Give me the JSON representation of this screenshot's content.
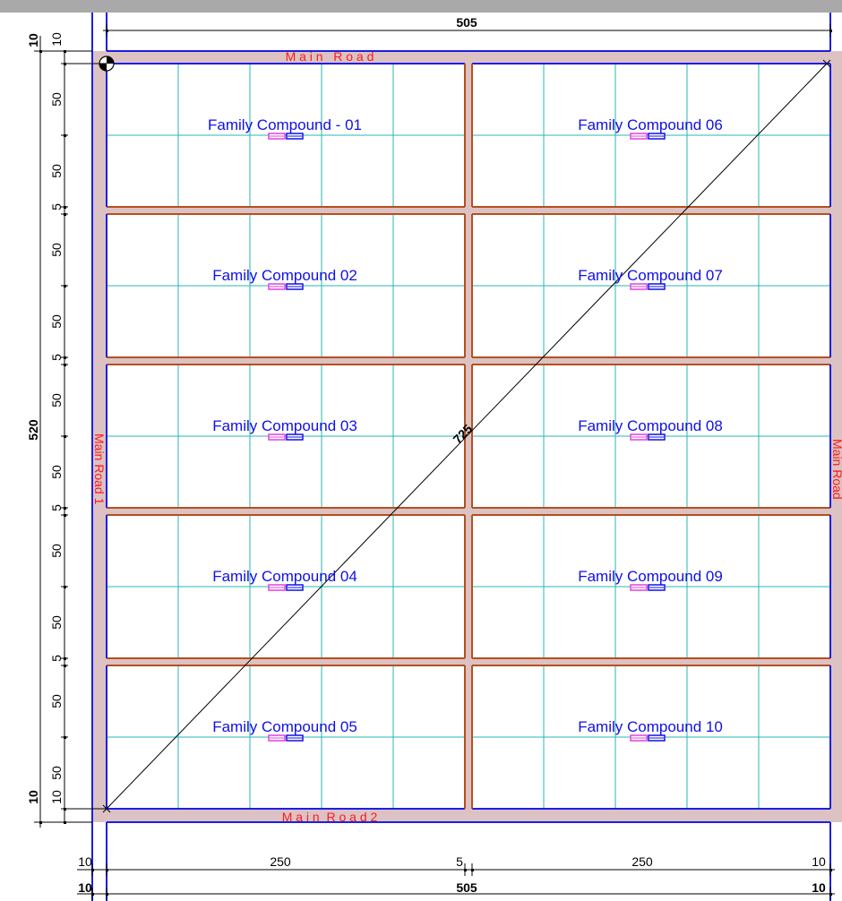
{
  "drawing": {
    "compounds": [
      {
        "label": "Family Compound - 01"
      },
      {
        "label": "Family Compound 02"
      },
      {
        "label": "Family Compound 03"
      },
      {
        "label": "Family Compound 04"
      },
      {
        "label": "Family Compound 05"
      },
      {
        "label": "Family Compound 06"
      },
      {
        "label": "Family Compound 07"
      },
      {
        "label": "Family Compound 08"
      },
      {
        "label": "Family Compound 09"
      },
      {
        "label": "Family Compound 10"
      }
    ],
    "roads": {
      "top": "M a i n   R o a d",
      "bottom": "M a i n  R o a d 2",
      "left": "Main Road 1",
      "right": "Main Road"
    },
    "diagonal_label": "725",
    "dims_top": {
      "total": "505"
    },
    "dims_bottom_row1": [
      "10",
      "250",
      "5",
      "250",
      "10"
    ],
    "dims_bottom_row2": [
      "10",
      "505",
      "10"
    ],
    "dims_left_inner": [
      "10",
      "50",
      "50",
      "5",
      "50",
      "50",
      "5",
      "50",
      "50",
      "5",
      "50",
      "50",
      "5",
      "50",
      "50",
      "10"
    ],
    "dims_left_outer": [
      "10",
      "520",
      "10"
    ],
    "colors": {
      "road_fill": "#dcc2c2",
      "plot_border_brown": "#b4501e",
      "plot_border_blue": "#1e1ee6",
      "grid_cyan": "#2ab5b5",
      "label_blue": "#1010e6",
      "road_label_red": "#ff1a1a",
      "marker_magenta": "#e040e0",
      "marker_blue": "#1010e6"
    }
  }
}
